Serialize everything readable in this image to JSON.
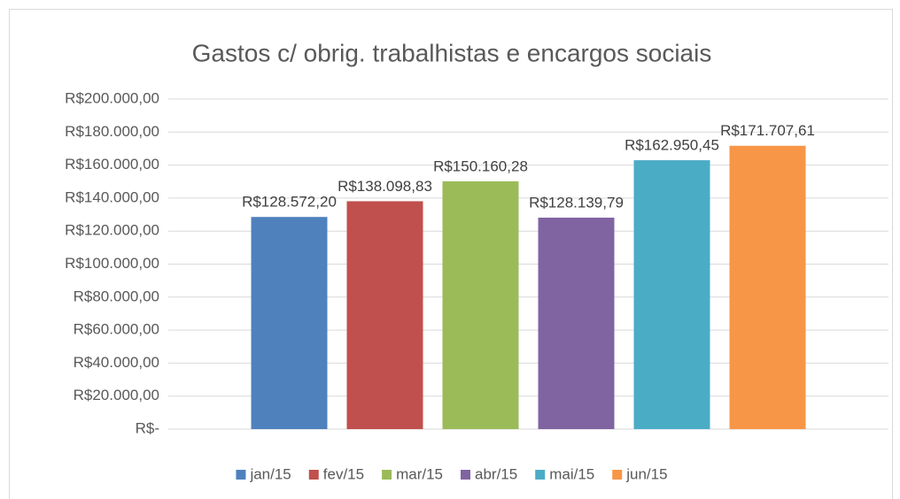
{
  "chart_data": {
    "type": "bar",
    "title": "Gastos c/ obrig. trabalhistas e encargos sociais",
    "categories": [
      "jan/15",
      "fev/15",
      "mar/15",
      "abr/15",
      "mai/15",
      "jun/15"
    ],
    "values": [
      128572.2,
      138098.83,
      150160.28,
      128139.79,
      162950.45,
      171707.61
    ],
    "value_labels": [
      "R$128.572,20",
      "R$138.098,83",
      "R$150.160,28",
      "R$128.139,79",
      "R$162.950,45",
      "R$171.707,61"
    ],
    "colors": [
      "#4f81bd",
      "#c0504d",
      "#9bbb59",
      "#8064a2",
      "#4bacc6",
      "#f79646"
    ],
    "ylim": [
      0,
      200000
    ],
    "yticks": [
      {
        "value": 0,
        "label": "R$-"
      },
      {
        "value": 20000,
        "label": "R$20.000,00"
      },
      {
        "value": 40000,
        "label": "R$40.000,00"
      },
      {
        "value": 60000,
        "label": "R$60.000,00"
      },
      {
        "value": 80000,
        "label": "R$80.000,00"
      },
      {
        "value": 100000,
        "label": "R$100.000,00"
      },
      {
        "value": 120000,
        "label": "R$120.000,00"
      },
      {
        "value": 140000,
        "label": "R$140.000,00"
      },
      {
        "value": 160000,
        "label": "R$160.000,00"
      },
      {
        "value": 180000,
        "label": "R$180.000,00"
      },
      {
        "value": 200000,
        "label": "R$200.000,00"
      }
    ],
    "grid": true,
    "legend": "bottom"
  }
}
